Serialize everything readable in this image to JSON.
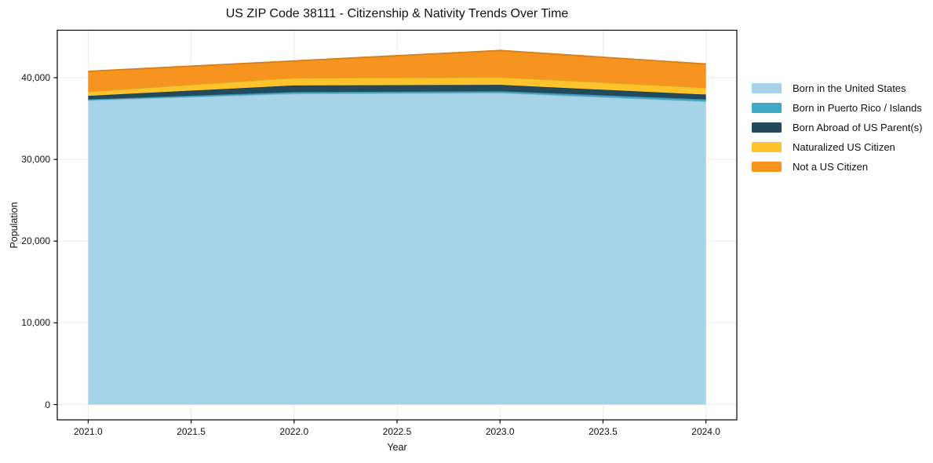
{
  "chart_data": {
    "type": "area",
    "stacked": true,
    "title": "US ZIP Code 38111 - Citizenship & Nativity Trends Over Time",
    "xlabel": "Year",
    "ylabel": "Population",
    "x": [
      2021,
      2022,
      2023,
      2024
    ],
    "series": [
      {
        "name": "Born in the United States",
        "color": "#A6D3E8",
        "values": [
          37250,
          38050,
          38150,
          37100
        ]
      },
      {
        "name": "Born in Puerto Rico / Islands",
        "color": "#3EA8C5",
        "values": [
          100,
          200,
          200,
          250
        ]
      },
      {
        "name": "Born Abroad of US Parent(s)",
        "color": "#234A5C",
        "values": [
          430,
          800,
          770,
          580
        ]
      },
      {
        "name": "Naturalized US Citizen",
        "color": "#FCC32C",
        "values": [
          530,
          950,
          950,
          860
        ]
      },
      {
        "name": "Not a US Citizen",
        "color": "#F7941F",
        "values": [
          2470,
          2050,
          3260,
          2890
        ]
      }
    ],
    "totals": [
      40780,
      42050,
      43330,
      41680
    ],
    "x_tick_labels": [
      "2021.0",
      "2021.5",
      "2022.0",
      "2022.5",
      "2023.0",
      "2023.5",
      "2024.0"
    ],
    "x_tick_values": [
      2021,
      2021.5,
      2022,
      2022.5,
      2023,
      2023.5,
      2024
    ],
    "y_tick_labels": [
      "0",
      "10,000",
      "20,000",
      "30,000",
      "40,000"
    ],
    "y_tick_values": [
      0,
      10000,
      20000,
      30000,
      40000
    ],
    "xlim": [
      2020.85,
      2024.15
    ],
    "ylim": [
      -1870,
      45810
    ],
    "grid": true,
    "legend_position": "right",
    "axis_color": "#000000",
    "grid_color": "#ebebeb",
    "text_color": "#111111"
  }
}
